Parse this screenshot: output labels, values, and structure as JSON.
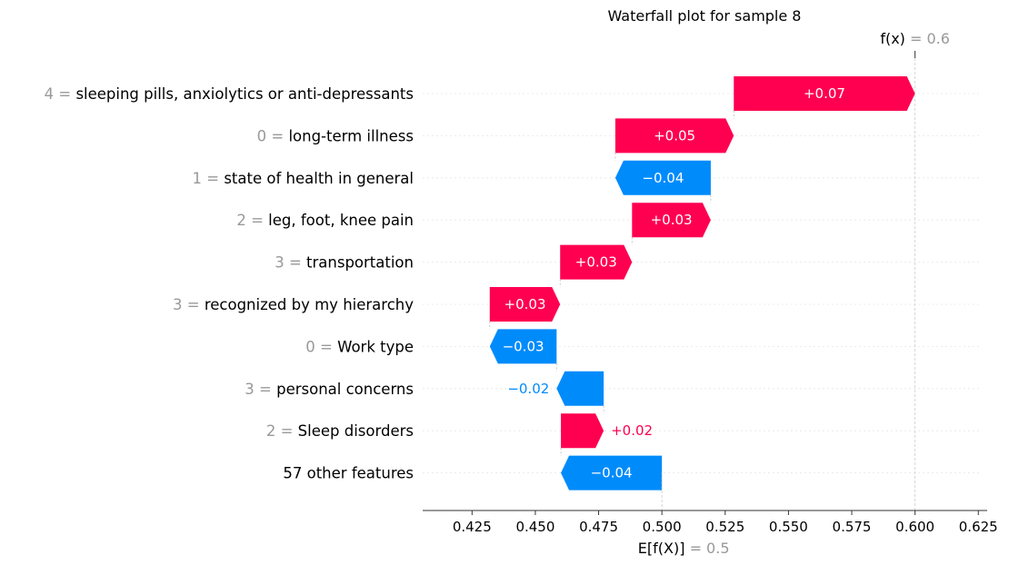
{
  "chart_data": {
    "type": "waterfall",
    "title": "Waterfall plot for sample 8",
    "base_value": 0.5,
    "final_value": 0.6,
    "base_label": "E[f(X)]",
    "final_label": "f(x)",
    "base_value_text": "0.5",
    "final_value_text": "0.6",
    "features": [
      {
        "value": "4",
        "name": "sleeping pills, anxiolytics or anti-depressants",
        "contribution": 0.0716,
        "label": "+0.07"
      },
      {
        "value": "0",
        "name": "long-term illness",
        "contribution": 0.0468,
        "label": "+0.05"
      },
      {
        "value": "1",
        "name": "state of health in general",
        "contribution": -0.0377,
        "label": "−0.04"
      },
      {
        "value": "2",
        "name": "leg, foot, knee pain",
        "contribution": 0.0311,
        "label": "+0.03"
      },
      {
        "value": "3",
        "name": "transportation",
        "contribution": 0.0284,
        "label": "+0.03"
      },
      {
        "value": "3",
        "name": "recognized by my hierarchy",
        "contribution": 0.0278,
        "label": "+0.03"
      },
      {
        "value": "0",
        "name": "Work type",
        "contribution": -0.0264,
        "label": "−0.03"
      },
      {
        "value": "3",
        "name": "personal concerns",
        "contribution": -0.0186,
        "label": "−0.02"
      },
      {
        "value": "2",
        "name": "Sleep disorders",
        "contribution": 0.0169,
        "label": "+0.02"
      },
      {
        "value": "",
        "name": "57 other features",
        "contribution": -0.0399,
        "label": "−0.04"
      }
    ],
    "xticks": [
      "0.425",
      "0.450",
      "0.475",
      "0.500",
      "0.525",
      "0.550",
      "0.575",
      "0.600",
      "0.625"
    ],
    "xlim": [
      0.4055,
      0.6285
    ],
    "grid": false,
    "colors": {
      "positive": "#ff0051",
      "negative": "#008bfb",
      "muted_text": "#999999",
      "guide_line": "#cccccc"
    }
  }
}
